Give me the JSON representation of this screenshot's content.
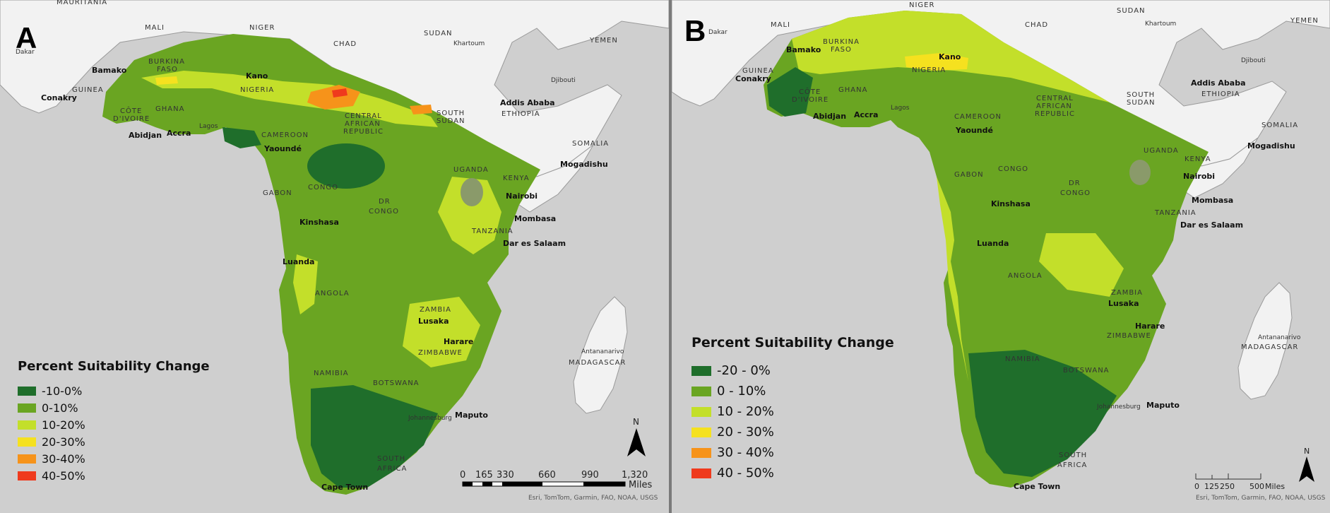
{
  "colors": {
    "water": "#cfcfcf",
    "land_outside": "#f2f2f2",
    "border": "#9a9a9a",
    "dark_green": "#1f6e2b",
    "green": "#6aa522",
    "light_green": "#c3df2a",
    "yellow": "#f5e11f",
    "orange": "#f6931a",
    "red": "#ef3a1d"
  },
  "panel_a": {
    "letter": "A",
    "legend": {
      "title": "Percent Suitability Change",
      "items": [
        {
          "label": "-10-0%",
          "color": "#1f6e2b"
        },
        {
          "label": "0-10%",
          "color": "#6aa522"
        },
        {
          "label": "10-20%",
          "color": "#c3df2a"
        },
        {
          "label": "20-30%",
          "color": "#f5e11f"
        },
        {
          "label": "30-40%",
          "color": "#f6931a"
        },
        {
          "label": "40-50%",
          "color": "#ef3a1d"
        }
      ]
    },
    "scale_bar": {
      "ticks": [
        "0",
        "165",
        "330",
        "660",
        "990",
        "1,320"
      ],
      "unit": "Miles"
    },
    "north": "N",
    "attribution": "Esri, TomTom, Garmin, FAO, NOAA, USGS",
    "countries": [
      "MAURITANIA",
      "MALI",
      "NIGER",
      "CHAD",
      "SUDAN",
      "YEMEN",
      "BURKINA",
      "FASO",
      "GUINEA",
      "NIGERIA",
      "CÔTE",
      "D'IVOIRE",
      "GHANA",
      "CENTRAL",
      "AFRICAN",
      "REPUBLIC",
      "SOUTH",
      "SUDAN",
      "ETHIOPIA",
      "SOMALIA",
      "CAMEROON",
      "CONGO",
      "GABON",
      "DR",
      "CONGO",
      "UGANDA",
      "KENYA",
      "TANZANIA",
      "ANGOLA",
      "ZAMBIA",
      "ZIMBABWE",
      "NAMIBIA",
      "BOTSWANA",
      "SOUTH",
      "AFRICA",
      "MADAGASCAR"
    ],
    "cities": [
      "Bamako",
      "Kano",
      "Conakry",
      "Abidjan",
      "Accra",
      "Lagos",
      "Yaoundé",
      "Kinshasa",
      "Luanda",
      "Nairobi",
      "Mombasa",
      "Dar es Salaam",
      "Mogadishu",
      "Addis Ababa",
      "Lusaka",
      "Harare",
      "Johannesburg",
      "Maputo",
      "Cape Town"
    ],
    "small_cities": [
      "Dakar",
      "Khartoum",
      "Djibouti",
      "Antananarivo"
    ]
  },
  "panel_b": {
    "letter": "B",
    "legend": {
      "title": "Percent Suitability Change",
      "items": [
        {
          "label": "-20 - 0%",
          "color": "#1f6e2b"
        },
        {
          "label": "0 - 10%",
          "color": "#6aa522"
        },
        {
          "label": "10 - 20%",
          "color": "#c3df2a"
        },
        {
          "label": "20 - 30%",
          "color": "#f5e11f"
        },
        {
          "label": "30 - 40%",
          "color": "#f6931a"
        },
        {
          "label": "40 - 50%",
          "color": "#ef3a1d"
        }
      ]
    },
    "scale_bar": {
      "ticks": [
        "0",
        "125",
        "250",
        "500"
      ],
      "unit": "Miles"
    },
    "north": "N",
    "attribution": "Esri, TomTom, Garmin, FAO, NOAA, USGS",
    "countries": [
      "MALI",
      "NIGER",
      "CHAD",
      "SUDAN",
      "YEMEN",
      "BURKINA",
      "FASO",
      "GUINEA",
      "NIGERIA",
      "CÔTE",
      "D'IVOIRE",
      "GHANA",
      "CENTRAL",
      "AFRICAN",
      "REPUBLIC",
      "SOUTH",
      "SUDAN",
      "ETHIOPIA",
      "SOMALIA",
      "CAMEROON",
      "GABON",
      "CONGO",
      "DR",
      "CONGO",
      "UGANDA",
      "KENYA",
      "TANZANIA",
      "ANGOLA",
      "ZAMBIA",
      "ZIMBABWE",
      "NAMIBIA",
      "BOTSWANA",
      "SOUTH",
      "AFRICA",
      "MADAGASCAR"
    ],
    "cities": [
      "Bamako",
      "Kano",
      "Conakry",
      "Abidjan",
      "Accra",
      "Lagos",
      "Yaoundé",
      "Kinshasa",
      "Luanda",
      "Nairobi",
      "Mombasa",
      "Dar es Salaam",
      "Mogadishu",
      "Addis Ababa",
      "Lusaka",
      "Harare",
      "Johannesburg",
      "Maputo",
      "Cape Town"
    ],
    "small_cities": [
      "Dakar",
      "Khartoum",
      "Djibouti",
      "Antananarivo"
    ]
  }
}
